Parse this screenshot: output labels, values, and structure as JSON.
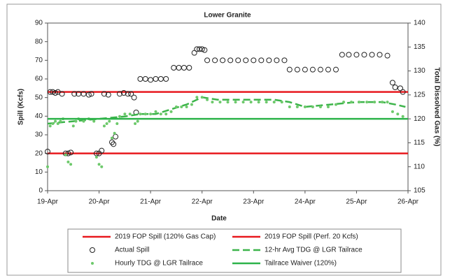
{
  "chart_data": {
    "type": "line",
    "title": "Lower Granite",
    "xlabel": "Date",
    "ylabel": "Spill (Kcfs)",
    "y2label": "Total Dissolved Gas (%)",
    "xlim": [
      0,
      7
    ],
    "xticks": [
      {
        "value": 0,
        "label": "19-Apr"
      },
      {
        "value": 1,
        "label": "20-Apr"
      },
      {
        "value": 2,
        "label": "21-Apr"
      },
      {
        "value": 3,
        "label": "22-Apr"
      },
      {
        "value": 4,
        "label": "23-Apr"
      },
      {
        "value": 5,
        "label": "24-Apr"
      },
      {
        "value": 6,
        "label": "25-Apr"
      },
      {
        "value": 7,
        "label": "26-Apr"
      }
    ],
    "ylim": [
      0,
      90
    ],
    "yticks": [
      0,
      10,
      20,
      30,
      40,
      50,
      60,
      70,
      80,
      90
    ],
    "y2lim": [
      105,
      140
    ],
    "y2ticks": [
      105,
      110,
      115,
      120,
      125,
      130,
      135,
      140
    ],
    "series": [
      {
        "name": "2019 FOP Spill (120% Gas Cap)",
        "color": "#e8191e",
        "style": "line",
        "axis": "y",
        "x": [
          0,
          7
        ],
        "values": [
          53,
          53
        ]
      },
      {
        "name": "2019 FOP Spill (Perf. 20 Kcfs)",
        "color": "#e8191e",
        "style": "line",
        "axis": "y",
        "x": [
          0,
          7
        ],
        "values": [
          20,
          20
        ]
      },
      {
        "name": "Actual Spill",
        "color": "#222222",
        "style": "open-circle",
        "axis": "y",
        "x": [
          0,
          0.05,
          0.1,
          0.15,
          0.2,
          0.28,
          0.35,
          0.4,
          0.45,
          0.52,
          0.6,
          0.7,
          0.8,
          0.85,
          0.95,
          1,
          1.05,
          1.1,
          1.18,
          1.25,
          1.28,
          1.32,
          1.4,
          1.48,
          1.56,
          1.62,
          1.68,
          1.72,
          1.8,
          1.9,
          2,
          2.1,
          2.2,
          2.3,
          2.45,
          2.55,
          2.65,
          2.75,
          2.85,
          2.9,
          2.95,
          3,
          3.05,
          3.1,
          3.25,
          3.4,
          3.55,
          3.7,
          3.85,
          4,
          4.15,
          4.3,
          4.45,
          4.6,
          4.7,
          4.85,
          5,
          5.15,
          5.3,
          5.45,
          5.6,
          5.72,
          5.85,
          6,
          6.15,
          6.3,
          6.45,
          6.6,
          6.7,
          6.75,
          6.85,
          6.9
        ],
        "values": [
          21,
          53,
          53,
          52.5,
          53,
          52,
          20,
          20,
          20.5,
          52,
          52,
          52,
          51.5,
          52,
          20,
          20,
          21.5,
          52,
          51.5,
          26,
          25,
          29,
          52,
          52.5,
          52,
          52,
          50,
          42,
          60,
          60,
          59.5,
          60,
          60,
          60,
          66,
          66,
          66,
          66,
          74,
          76,
          76,
          76,
          75.5,
          70,
          70,
          70,
          70,
          70,
          70,
          70,
          70,
          70,
          70,
          70,
          65,
          65,
          65,
          65,
          65,
          65,
          65,
          73,
          73,
          73,
          73,
          73,
          73,
          72.5,
          58,
          55.5,
          55,
          53
        ]
      },
      {
        "name": "12-hr Avg TDG @ LGR Tailrace",
        "color": "#3cb44a",
        "style": "dashed",
        "axis": "y2",
        "x": [
          0,
          0.5,
          1,
          1.5,
          1.8,
          2.1,
          2.4,
          2.7,
          3,
          3.3,
          3.8,
          4.4,
          4.7,
          5,
          5.5,
          6,
          6.5,
          6.75,
          6.95
        ],
        "values": [
          119,
          119.5,
          120,
          120.5,
          121,
          121,
          122,
          123,
          124.5,
          124,
          124,
          124,
          123.5,
          122.5,
          123,
          123.5,
          123.5,
          123,
          122.5
        ]
      },
      {
        "name": "Hourly TDG @ LGR Tailrace",
        "color": "#6dc96b",
        "style": "dot",
        "axis": "y2",
        "x": [
          0,
          0.05,
          0.1,
          0.15,
          0.2,
          0.25,
          0.3,
          0.35,
          0.4,
          0.45,
          0.5,
          0.55,
          0.6,
          0.7,
          0.8,
          0.9,
          0.95,
          1,
          1.05,
          1.1,
          1.15,
          1.2,
          1.25,
          1.3,
          1.35,
          1.4,
          1.5,
          1.6,
          1.7,
          1.75,
          1.8,
          1.9,
          2,
          2.1,
          2.2,
          2.3,
          2.4,
          2.5,
          2.6,
          2.7,
          2.8,
          2.9,
          3,
          3.1,
          3.2,
          3.35,
          3.5,
          3.65,
          3.8,
          3.95,
          4.1,
          4.25,
          4.4,
          4.55,
          4.7,
          4.85,
          5,
          5.15,
          5.3,
          5.45,
          5.6,
          5.75,
          5.9,
          6.05,
          6.2,
          6.35,
          6.5,
          6.6,
          6.7,
          6.8,
          6.9
        ],
        "values": [
          110,
          118.5,
          119,
          119.5,
          119,
          119.5,
          120,
          112.5,
          111,
          110.5,
          118.5,
          119.5,
          120,
          119.5,
          120,
          119.5,
          112,
          110.5,
          110,
          118.5,
          119,
          119.5,
          116,
          117,
          119,
          120.5,
          121,
          121,
          119,
          119.5,
          121,
          121,
          121,
          121.5,
          121,
          121,
          121.5,
          122.5,
          122.5,
          122.5,
          123,
          124.5,
          124.5,
          124,
          123.5,
          123.5,
          123.5,
          123.5,
          123.5,
          123.5,
          123.5,
          123.5,
          123.5,
          123.5,
          122.5,
          122.5,
          122.5,
          122.5,
          122.5,
          122.5,
          123,
          123.5,
          123.5,
          123.5,
          123.5,
          123.5,
          123.5,
          123.5,
          121.5,
          121,
          120.5
        ]
      },
      {
        "name": "Tailrace Waiver (120%)",
        "color": "#2db34a",
        "style": "line",
        "axis": "y2",
        "x": [
          0,
          7
        ],
        "values": [
          120,
          120
        ]
      }
    ]
  }
}
